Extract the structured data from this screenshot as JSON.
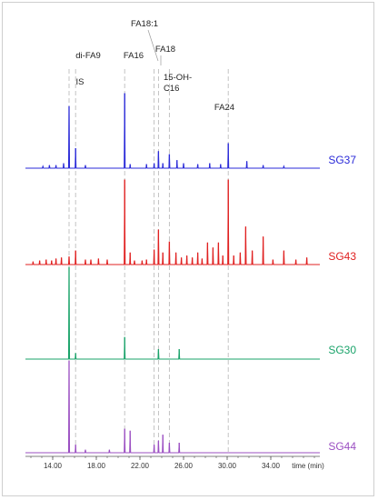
{
  "chart_data": {
    "type": "line",
    "title": "",
    "xlabel": "time (min)",
    "ylabel": "",
    "xlim": [
      11.5,
      38.5
    ],
    "x_ticks": [
      "14.00",
      "18.00",
      "22.00",
      "26.00",
      "30.00",
      "34.00"
    ],
    "grid": false,
    "legend": "none",
    "markers": [
      {
        "label": "IS",
        "time": 15.5
      },
      {
        "label": "di-FA9",
        "time": 16.1
      },
      {
        "label": "FA16",
        "time": 20.6
      },
      {
        "label": "FA18:1",
        "time": 23.3
      },
      {
        "label": "FA18",
        "time": 23.7
      },
      {
        "label": "15-OH-\nC16",
        "time": 24.7
      },
      {
        "label": "FA24",
        "time": 30.1
      }
    ],
    "series": [
      {
        "name": "SG37",
        "color": "#2a2ad8",
        "peaks": [
          [
            13.1,
            0.02
          ],
          [
            13.7,
            0.03
          ],
          [
            14.3,
            0.03
          ],
          [
            15.0,
            0.05
          ],
          [
            15.5,
            0.62
          ],
          [
            16.1,
            0.2
          ],
          [
            17.0,
            0.03
          ],
          [
            20.6,
            0.75
          ],
          [
            21.1,
            0.04
          ],
          [
            22.6,
            0.04
          ],
          [
            23.3,
            0.05
          ],
          [
            23.7,
            0.17
          ],
          [
            24.1,
            0.05
          ],
          [
            24.7,
            0.14
          ],
          [
            25.4,
            0.08
          ],
          [
            26.0,
            0.05
          ],
          [
            27.3,
            0.04
          ],
          [
            28.4,
            0.05
          ],
          [
            29.4,
            0.04
          ],
          [
            30.1,
            0.25
          ],
          [
            31.8,
            0.07
          ],
          [
            33.3,
            0.03
          ],
          [
            35.2,
            0.02
          ]
        ]
      },
      {
        "name": "SG43",
        "color": "#e02020",
        "peaks": [
          [
            12.2,
            0.03
          ],
          [
            12.8,
            0.04
          ],
          [
            13.4,
            0.05
          ],
          [
            13.9,
            0.04
          ],
          [
            14.3,
            0.06
          ],
          [
            14.8,
            0.07
          ],
          [
            15.5,
            0.08
          ],
          [
            16.1,
            0.14
          ],
          [
            17.0,
            0.05
          ],
          [
            17.5,
            0.05
          ],
          [
            18.2,
            0.06
          ],
          [
            19.0,
            0.05
          ],
          [
            20.6,
            0.85
          ],
          [
            21.1,
            0.12
          ],
          [
            21.5,
            0.04
          ],
          [
            22.2,
            0.04
          ],
          [
            22.6,
            0.05
          ],
          [
            23.3,
            0.15
          ],
          [
            23.7,
            0.35
          ],
          [
            24.1,
            0.12
          ],
          [
            24.7,
            0.23
          ],
          [
            25.3,
            0.12
          ],
          [
            25.8,
            0.07
          ],
          [
            26.3,
            0.09
          ],
          [
            26.8,
            0.07
          ],
          [
            27.3,
            0.12
          ],
          [
            27.7,
            0.06
          ],
          [
            28.2,
            0.22
          ],
          [
            28.7,
            0.17
          ],
          [
            29.2,
            0.22
          ],
          [
            29.6,
            0.09
          ],
          [
            30.1,
            0.85
          ],
          [
            30.6,
            0.09
          ],
          [
            31.2,
            0.12
          ],
          [
            31.7,
            0.38
          ],
          [
            32.3,
            0.14
          ],
          [
            33.3,
            0.28
          ],
          [
            34.2,
            0.05
          ],
          [
            35.2,
            0.14
          ],
          [
            36.3,
            0.05
          ],
          [
            37.3,
            0.07
          ]
        ]
      },
      {
        "name": "SG30",
        "color": "#1aa36a",
        "peaks": [
          [
            15.5,
            0.92
          ],
          [
            16.1,
            0.06
          ],
          [
            20.6,
            0.22
          ],
          [
            23.7,
            0.1
          ],
          [
            25.6,
            0.1
          ]
        ]
      },
      {
        "name": "SG44",
        "color": "#9b4fc2",
        "peaks": [
          [
            15.5,
            0.92
          ],
          [
            16.1,
            0.08
          ],
          [
            17.0,
            0.03
          ],
          [
            19.2,
            0.03
          ],
          [
            20.6,
            0.24
          ],
          [
            21.1,
            0.22
          ],
          [
            23.3,
            0.08
          ],
          [
            23.7,
            0.12
          ],
          [
            24.1,
            0.18
          ],
          [
            24.7,
            0.1
          ],
          [
            25.6,
            0.1
          ]
        ]
      }
    ]
  }
}
